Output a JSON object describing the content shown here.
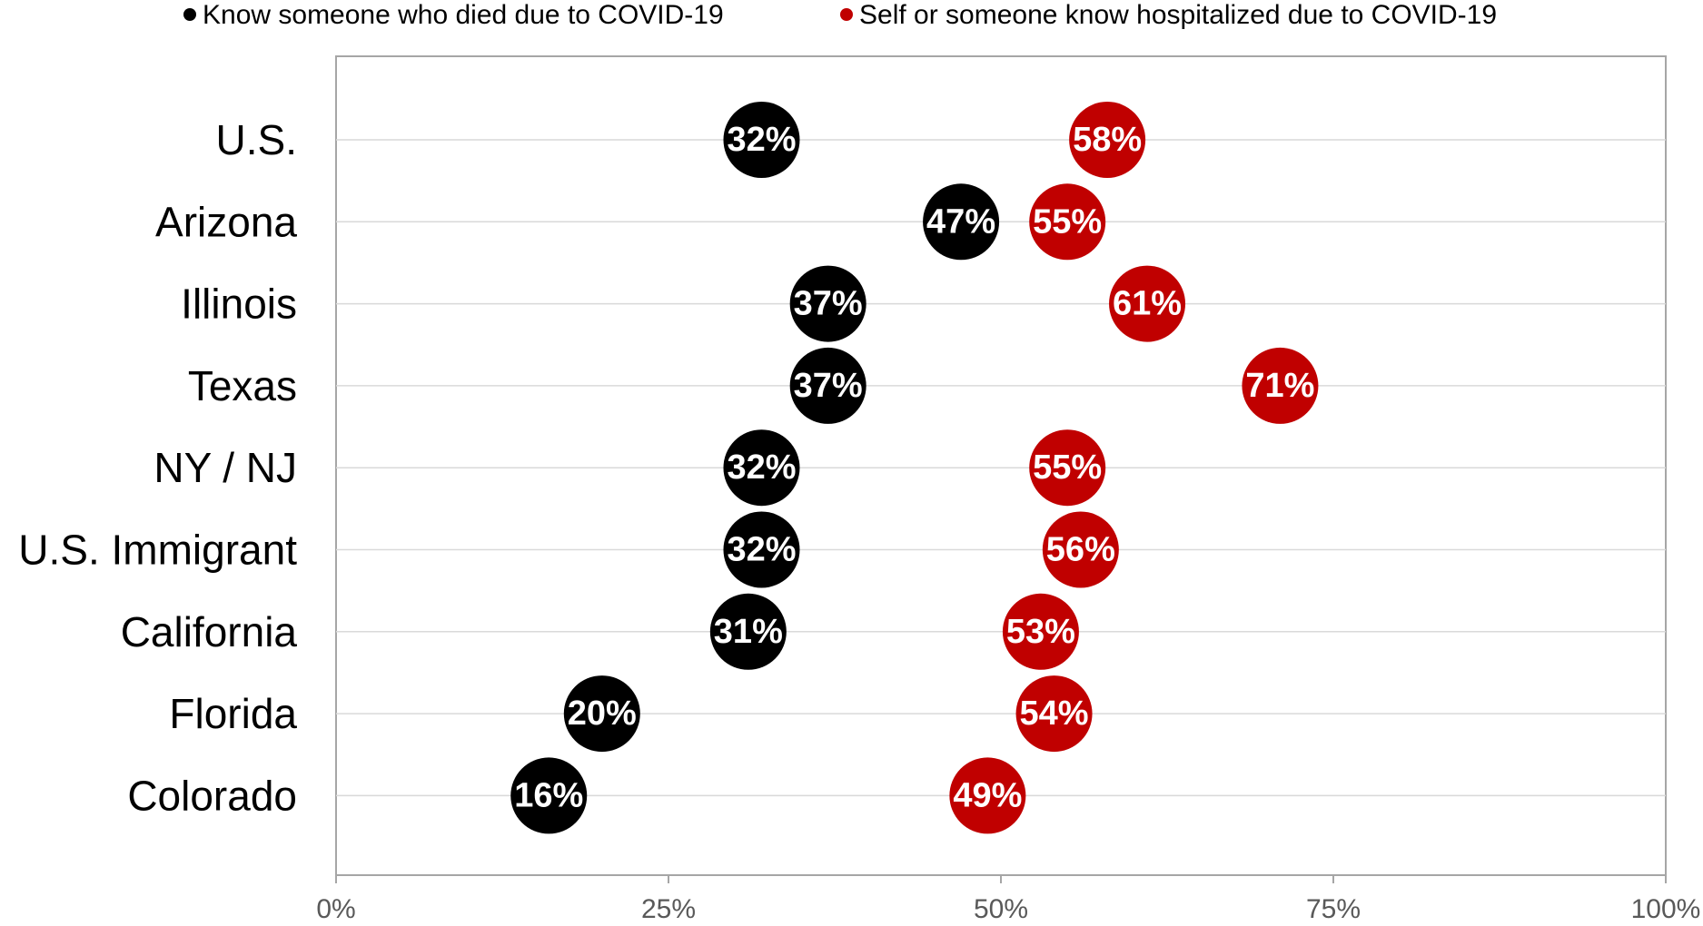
{
  "chart_data": {
    "type": "scatter",
    "title": "",
    "xlabel": "",
    "ylabel": "",
    "xlim": [
      0,
      100
    ],
    "x_ticks": [
      0,
      25,
      50,
      75,
      100
    ],
    "x_tick_labels": [
      "0%",
      "25%",
      "50%",
      "75%",
      "100%"
    ],
    "grid": "horizontal",
    "legend_position": "top",
    "categories": [
      "U.S.",
      "Arizona",
      "Illinois",
      "Texas",
      "NY / NJ",
      "U.S. Immigrant",
      "California",
      "Florida",
      "Colorado"
    ],
    "series": [
      {
        "name": "Know someone who died due to COVID-19",
        "color": "#000000",
        "values": [
          32,
          47,
          37,
          37,
          32,
          32,
          31,
          20,
          16
        ],
        "labels": [
          "32%",
          "47%",
          "37%",
          "37%",
          "32%",
          "32%",
          "31%",
          "20%",
          "16%"
        ]
      },
      {
        "name": "Self or someone know hospitalized due to COVID-19",
        "color": "#c00000",
        "values": [
          58,
          55,
          61,
          71,
          55,
          56,
          53,
          54,
          49
        ],
        "labels": [
          "58%",
          "55%",
          "61%",
          "71%",
          "55%",
          "56%",
          "53%",
          "54%",
          "49%"
        ]
      }
    ]
  }
}
